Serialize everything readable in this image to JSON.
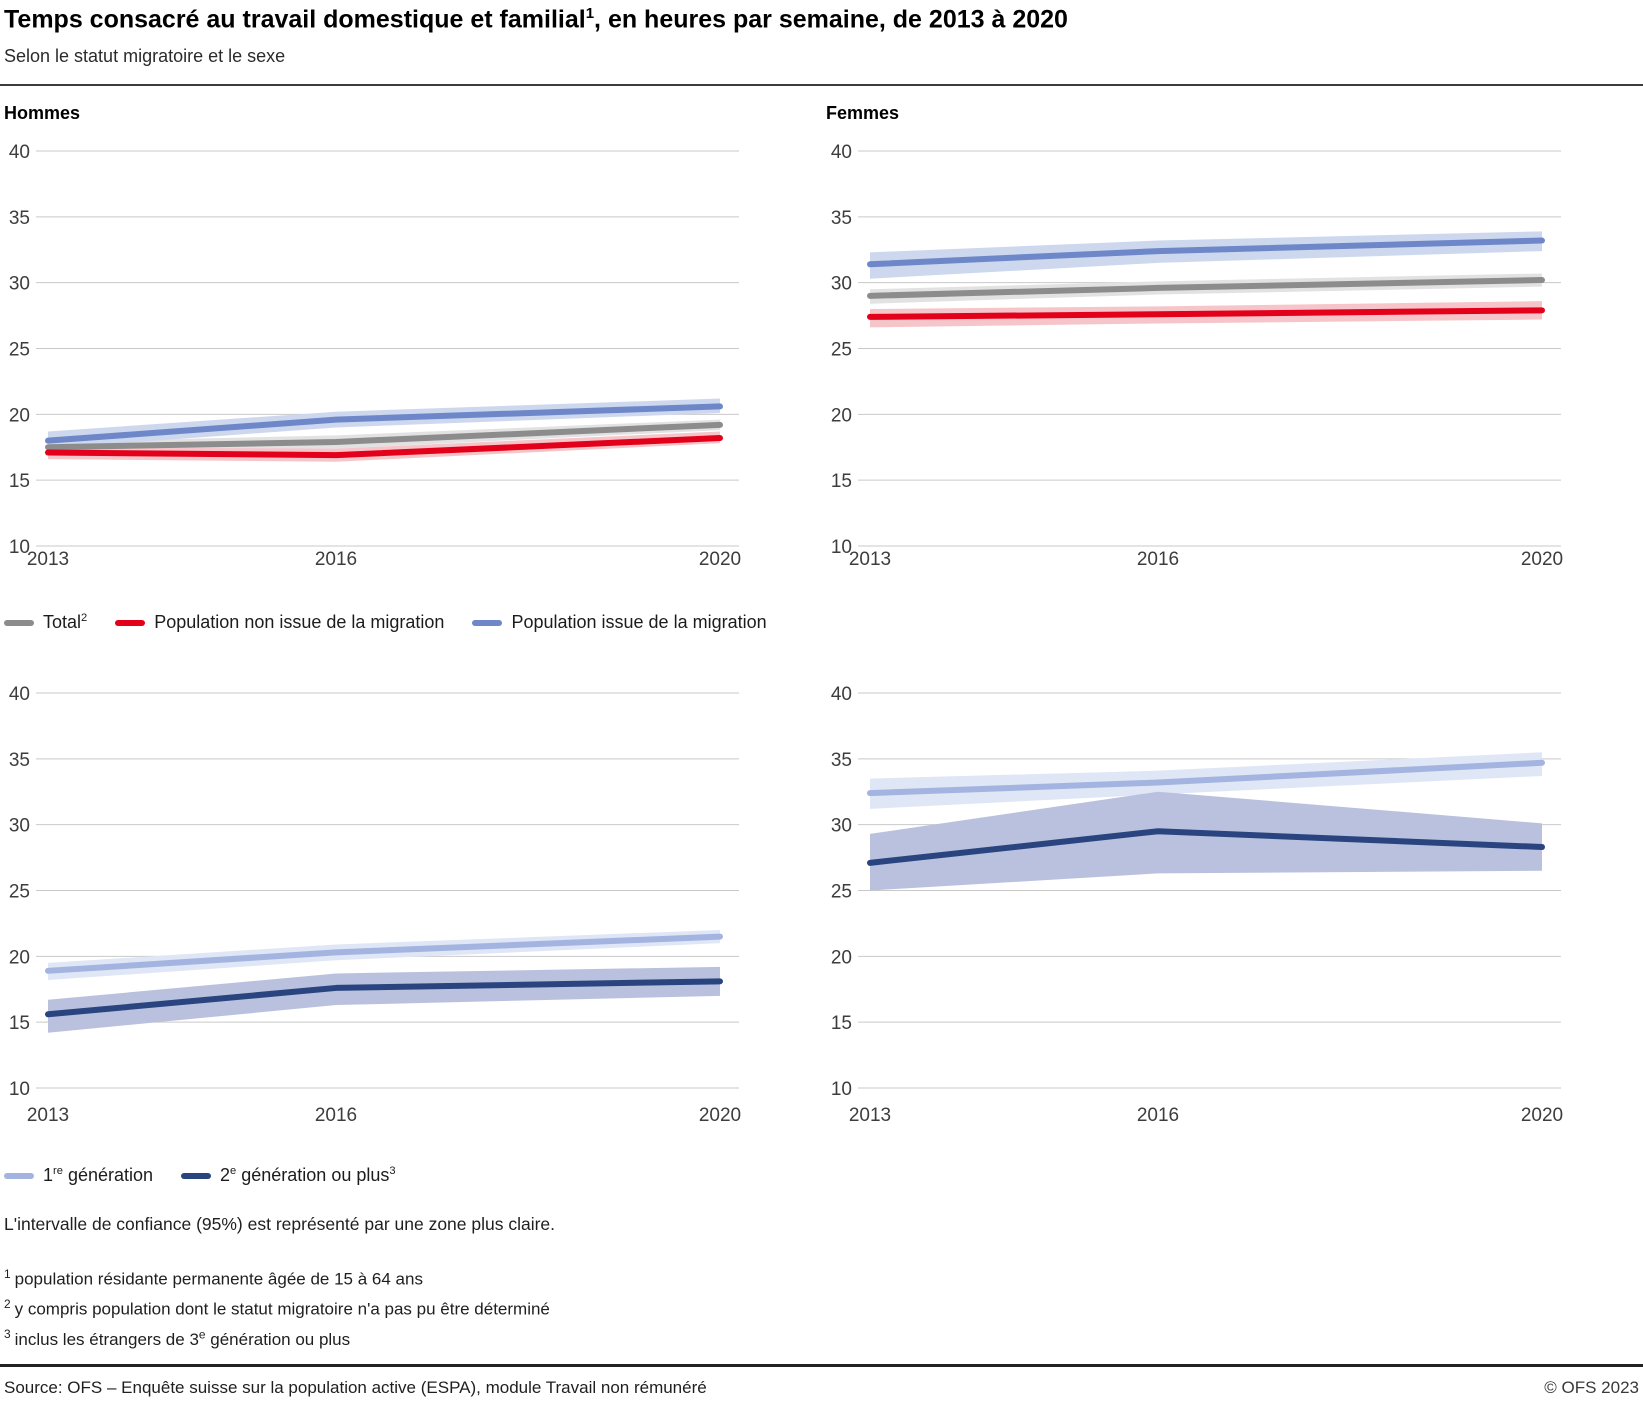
{
  "header": {
    "title": "Temps consacré au travail domestique et familial^{1}, en heures par semaine, de 2013 à 2020",
    "subtitle": "Selon le statut migratoire et le sexe"
  },
  "panels": {
    "left_label": "Hommes",
    "right_label": "Femmes"
  },
  "chart_data": [
    {
      "type": "line",
      "panel": "Hommes",
      "x": [
        2013,
        2016,
        2020
      ],
      "ylim": [
        10,
        40
      ],
      "yticks": [
        10,
        15,
        20,
        25,
        30,
        35,
        40
      ],
      "grid": true,
      "legend_position": "below",
      "series": [
        {
          "name": "Total^{2}",
          "color": "#8c8c8c",
          "band_color": "#e2e2e2",
          "values": [
            17.5,
            17.9,
            19.2
          ],
          "upper": [
            17.9,
            18.4,
            19.6
          ],
          "lower": [
            17.1,
            17.4,
            18.8
          ]
        },
        {
          "name": "Population non issue de la migration",
          "color": "#e2001a",
          "band_color": "#f6c5ca",
          "values": [
            17.1,
            16.9,
            18.2
          ],
          "upper": [
            17.5,
            17.4,
            18.7
          ],
          "lower": [
            16.6,
            16.4,
            17.8
          ]
        },
        {
          "name": "Population issue de la migration",
          "color": "#6e87c8",
          "band_color": "#cdd8ef",
          "values": [
            18.0,
            19.6,
            20.6
          ],
          "upper": [
            18.7,
            20.2,
            21.2
          ],
          "lower": [
            17.4,
            19.0,
            20.1
          ]
        }
      ]
    },
    {
      "type": "line",
      "panel": "Femmes",
      "x": [
        2013,
        2016,
        2020
      ],
      "ylim": [
        10,
        40
      ],
      "yticks": [
        10,
        15,
        20,
        25,
        30,
        35,
        40
      ],
      "grid": true,
      "legend_position": "below",
      "series": [
        {
          "name": "Total^{2}",
          "color": "#8c8c8c",
          "band_color": "#e2e2e2",
          "values": [
            29.0,
            29.6,
            30.2
          ],
          "upper": [
            29.5,
            30.1,
            30.7
          ],
          "lower": [
            28.4,
            29.1,
            29.7
          ]
        },
        {
          "name": "Population non issue de la migration",
          "color": "#e2001a",
          "band_color": "#f6c5ca",
          "values": [
            27.4,
            27.6,
            27.9
          ],
          "upper": [
            28.0,
            28.2,
            28.6
          ],
          "lower": [
            26.6,
            26.9,
            27.2
          ]
        },
        {
          "name": "Population issue de la migration",
          "color": "#6e87c8",
          "band_color": "#cdd8ef",
          "values": [
            31.4,
            32.4,
            33.2
          ],
          "upper": [
            32.3,
            33.2,
            33.9
          ],
          "lower": [
            30.3,
            31.5,
            32.4
          ]
        }
      ]
    },
    {
      "type": "line",
      "panel": "Hommes",
      "x": [
        2013,
        2016,
        2020
      ],
      "ylim": [
        10,
        40
      ],
      "yticks": [
        10,
        15,
        20,
        25,
        30,
        35,
        40
      ],
      "grid": true,
      "legend_position": "below",
      "series": [
        {
          "name": "1^{re} génération",
          "color": "#a3b4e0",
          "band_color": "#dfe6f5",
          "values": [
            18.9,
            20.3,
            21.5
          ],
          "upper": [
            19.5,
            20.9,
            22.0
          ],
          "lower": [
            18.2,
            19.7,
            21.0
          ]
        },
        {
          "name": "2^{e} génération ou plus^{3}",
          "color": "#2a4480",
          "band_color": "#b9c1de",
          "values": [
            15.6,
            17.6,
            18.1
          ],
          "upper": [
            16.7,
            18.7,
            19.2
          ],
          "lower": [
            14.2,
            16.3,
            17.0
          ]
        }
      ]
    },
    {
      "type": "line",
      "panel": "Femmes",
      "x": [
        2013,
        2016,
        2020
      ],
      "ylim": [
        10,
        40
      ],
      "yticks": [
        10,
        15,
        20,
        25,
        30,
        35,
        40
      ],
      "grid": true,
      "legend_position": "below",
      "series": [
        {
          "name": "1^{re} génération",
          "color": "#a3b4e0",
          "band_color": "#dfe6f5",
          "values": [
            32.4,
            33.2,
            34.7
          ],
          "upper": [
            33.5,
            34.1,
            35.5
          ],
          "lower": [
            31.2,
            32.3,
            33.7
          ]
        },
        {
          "name": "2^{e} génération ou plus^{3}",
          "color": "#2a4480",
          "band_color": "#b9c1de",
          "values": [
            27.1,
            29.5,
            28.3
          ],
          "upper": [
            29.3,
            32.5,
            30.1
          ],
          "lower": [
            25.0,
            26.3,
            26.5
          ]
        }
      ]
    }
  ],
  "legends": [
    {
      "items": [
        {
          "label": "Total^{2}",
          "color": "#8c8c8c"
        },
        {
          "label": "Population non issue de la migration",
          "color": "#e2001a"
        },
        {
          "label": "Population issue de la migration",
          "color": "#6e87c8"
        }
      ]
    },
    {
      "items": [
        {
          "label": "1^{re} génération",
          "color": "#a3b4e0"
        },
        {
          "label": "2^{e} génération ou plus^{3}",
          "color": "#2a4480"
        }
      ]
    }
  ],
  "notes": {
    "confidence": "L'intervalle de confiance (95%) est représenté par une zone plus claire.",
    "footnotes": [
      {
        "marker": "1",
        "text": "population résidante permanente âgée de 15 à 64 ans"
      },
      {
        "marker": "2",
        "text": "y compris population dont le statut migratoire n'a pas pu être déterminé"
      },
      {
        "marker": "3",
        "text": "inclus les étrangers de 3^{e} génération ou plus"
      }
    ]
  },
  "footer": {
    "source": "Source: OFS – Enquête suisse sur la population active (ESPA), module Travail non rémunéré",
    "copyright": "© OFS 2023"
  }
}
